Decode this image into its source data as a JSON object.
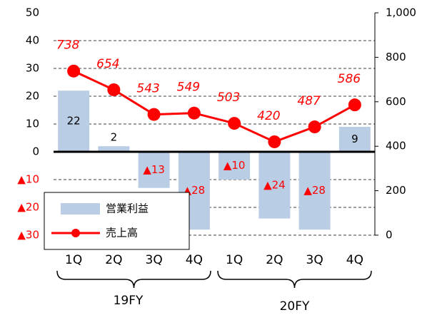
{
  "chart_data": {
    "type": "combo",
    "categories": [
      "1Q",
      "2Q",
      "3Q",
      "4Q",
      "1Q",
      "2Q",
      "3Q",
      "4Q"
    ],
    "groups": [
      "19FY",
      "20FY"
    ],
    "series": [
      {
        "name": "営業利益",
        "type": "bar",
        "color": "#b9cde5",
        "axis": "y",
        "values": [
          22,
          2,
          -13,
          -28,
          -10,
          -24,
          -28,
          9
        ],
        "value_labels": [
          "22",
          "2",
          "▲13",
          "▲28",
          "▲10",
          "▲24",
          "▲28",
          "9"
        ]
      },
      {
        "name": "売上高",
        "type": "line",
        "color": "#ff0000",
        "axis": "y2",
        "values": [
          738,
          654,
          543,
          549,
          503,
          420,
          487,
          586
        ]
      }
    ],
    "ylim": [
      -30,
      50
    ],
    "yticks": [
      50,
      40,
      30,
      20,
      10,
      0,
      {
        "value": -10,
        "label": "▲10"
      },
      {
        "value": -20,
        "label": "▲20"
      },
      {
        "value": -30,
        "label": "▲30"
      }
    ],
    "y2lim": [
      0,
      1000
    ],
    "y2ticks": [
      0,
      200,
      400,
      600,
      800,
      {
        "value": 1000,
        "label": "1,000"
      }
    ],
    "grid": true
  }
}
